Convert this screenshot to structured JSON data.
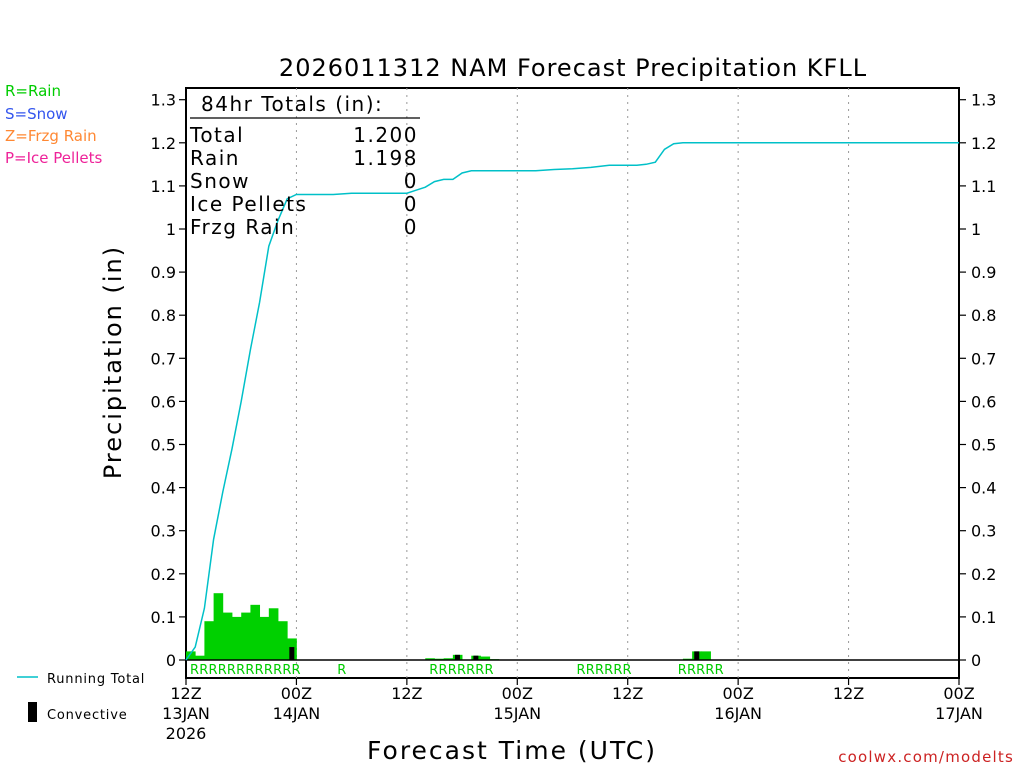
{
  "chart_data": {
    "type": "bar",
    "title": "2026011312 NAM Forecast Precipitation KFLL",
    "xlabel": "Forecast Time (UTC)",
    "ylabel": "Precipitation (in)",
    "ylim": [
      0,
      1.32
    ],
    "xlim_hours": [
      0,
      84
    ],
    "yticks": [
      "0",
      "0.1",
      "0.2",
      "0.3",
      "0.4",
      "0.5",
      "0.6",
      "0.7",
      "0.8",
      "0.9",
      "1",
      "1.1",
      "1.2",
      "1.3"
    ],
    "xticks": [
      {
        "hour": 0,
        "top": "12Z",
        "mid": "13JAN",
        "bot": "2026"
      },
      {
        "hour": 12,
        "top": "00Z",
        "mid": "14JAN",
        "bot": ""
      },
      {
        "hour": 24,
        "top": "12Z",
        "mid": "",
        "bot": ""
      },
      {
        "hour": 36,
        "top": "00Z",
        "mid": "15JAN",
        "bot": ""
      },
      {
        "hour": 48,
        "top": "12Z",
        "mid": "",
        "bot": ""
      },
      {
        "hour": 60,
        "top": "00Z",
        "mid": "16JAN",
        "bot": ""
      },
      {
        "hour": 72,
        "top": "12Z",
        "mid": "",
        "bot": ""
      },
      {
        "hour": 84,
        "top": "00Z",
        "mid": "17JAN",
        "bot": ""
      }
    ],
    "legend_types": [
      {
        "label": "R=Rain",
        "color": "#00cc00"
      },
      {
        "label": "S=Snow",
        "color": "#3355ee"
      },
      {
        "label": "Z=Frzg Rain",
        "color": "#ff8833"
      },
      {
        "label": "P=Ice Pellets",
        "color": "#ee2299"
      }
    ],
    "legend_series": [
      {
        "label": "Running Total",
        "color": "#00c0c8"
      },
      {
        "label": "Convective",
        "color": "#000000"
      }
    ],
    "totals": {
      "header": "84hr Totals (in):",
      "rows": [
        {
          "label": "Total",
          "value": "1.200"
        },
        {
          "label": "Rain",
          "value": "1.198"
        },
        {
          "label": "Snow",
          "value": "0"
        },
        {
          "label": "Ice Pellets",
          "value": "0"
        },
        {
          "label": "Frzg Rain",
          "value": "0"
        }
      ]
    },
    "series": [
      {
        "name": "Precipitation (3-hourly step bars, hours after 12Z 13JAN)",
        "color": "#00d000",
        "x": [
          0,
          1,
          2,
          3,
          4,
          5,
          6,
          7,
          8,
          9,
          10,
          11,
          12,
          26,
          27,
          28,
          29,
          31,
          32,
          33,
          54,
          55,
          56
        ],
        "values": [
          0.02,
          0.01,
          0.09,
          0.155,
          0.11,
          0.1,
          0.11,
          0.128,
          0.1,
          0.12,
          0.09,
          0.05,
          0.001,
          0.004,
          0.003,
          0.004,
          0.012,
          0.01,
          0.008,
          0.002,
          0.003,
          0.02,
          0.02
        ]
      },
      {
        "name": "Convective",
        "color": "#000000",
        "x": [
          11,
          29,
          31,
          55
        ],
        "values": [
          0.03,
          0.012,
          0.01,
          0.02
        ]
      },
      {
        "name": "Running Total",
        "color": "#00c0c8",
        "x": [
          0,
          1,
          2,
          3,
          4,
          5,
          6,
          7,
          8,
          9,
          10,
          11,
          12,
          13,
          14,
          16,
          18,
          20,
          22,
          24,
          25,
          26,
          27,
          28,
          29,
          30,
          31,
          32,
          34,
          36,
          38,
          40,
          42,
          44,
          46,
          48,
          49,
          50,
          51,
          52,
          53,
          54,
          55,
          56,
          58,
          60,
          62,
          64,
          66,
          68,
          70,
          72,
          74,
          76,
          78,
          80,
          82,
          84
        ],
        "values": [
          0.0,
          0.03,
          0.12,
          0.28,
          0.39,
          0.49,
          0.6,
          0.72,
          0.83,
          0.96,
          1.02,
          1.07,
          1.08,
          1.08,
          1.08,
          1.08,
          1.083,
          1.083,
          1.083,
          1.083,
          1.09,
          1.097,
          1.11,
          1.115,
          1.115,
          1.13,
          1.135,
          1.135,
          1.135,
          1.135,
          1.135,
          1.138,
          1.14,
          1.143,
          1.148,
          1.148,
          1.148,
          1.15,
          1.155,
          1.185,
          1.198,
          1.2,
          1.2,
          1.2,
          1.2,
          1.2,
          1.2,
          1.2,
          1.2,
          1.2,
          1.2,
          1.2,
          1.2,
          1.2,
          1.2,
          1.2,
          1.2,
          1.2
        ]
      }
    ],
    "type_labels": [
      {
        "hour": 0,
        "text": "RRRRRRRRRRRR"
      },
      {
        "hour": 16,
        "text": "R"
      },
      {
        "hour": 26,
        "text": "RRRRR"
      },
      {
        "hour": 31,
        "text": "RR"
      },
      {
        "hour": 42,
        "text": "RRR"
      },
      {
        "hour": 45,
        "text": "RRR"
      },
      {
        "hour": 53,
        "text": "RRRRR"
      }
    ],
    "watermark": "coolwx.com/modelts"
  }
}
